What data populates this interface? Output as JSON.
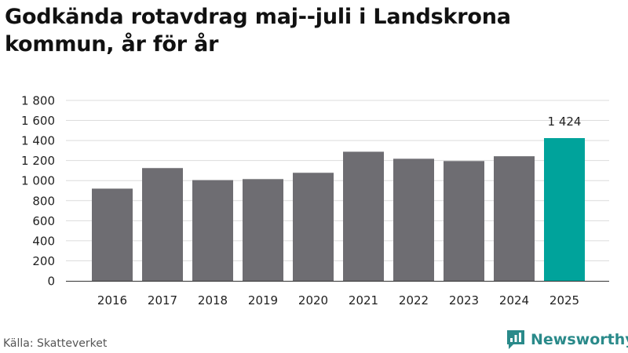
{
  "title": "Godkända rotavdrag maj--juli i Landskrona kommun, år för år",
  "source": "Källa: Skatteverket",
  "brand": {
    "name": "Newsworthy",
    "color": "#2a8a8a",
    "icon": "newsworthy-logo-icon"
  },
  "colors": {
    "bar": "#6e6d72",
    "highlight": "#00a39b",
    "grid": "#dcdcdc",
    "axis": "#333333"
  },
  "chart_data": {
    "type": "bar",
    "categories": [
      "2016",
      "2017",
      "2018",
      "2019",
      "2020",
      "2021",
      "2022",
      "2023",
      "2024",
      "2025"
    ],
    "values": [
      920,
      1125,
      1005,
      1015,
      1078,
      1288,
      1218,
      1195,
      1243,
      1424
    ],
    "highlight_index": 9,
    "data_labels": [
      {
        "index": 9,
        "text": "1 424"
      }
    ],
    "yticks": [
      0,
      200,
      400,
      600,
      800,
      1000,
      1200,
      1400,
      1600,
      1800
    ],
    "ytick_labels": [
      "0",
      "200",
      "400",
      "600",
      "800",
      "1 000",
      "1 200",
      "1 400",
      "1 600",
      "1 800"
    ],
    "ylim": [
      0,
      1800
    ],
    "grid": true,
    "legend": "none",
    "xlabel": "",
    "ylabel": ""
  }
}
